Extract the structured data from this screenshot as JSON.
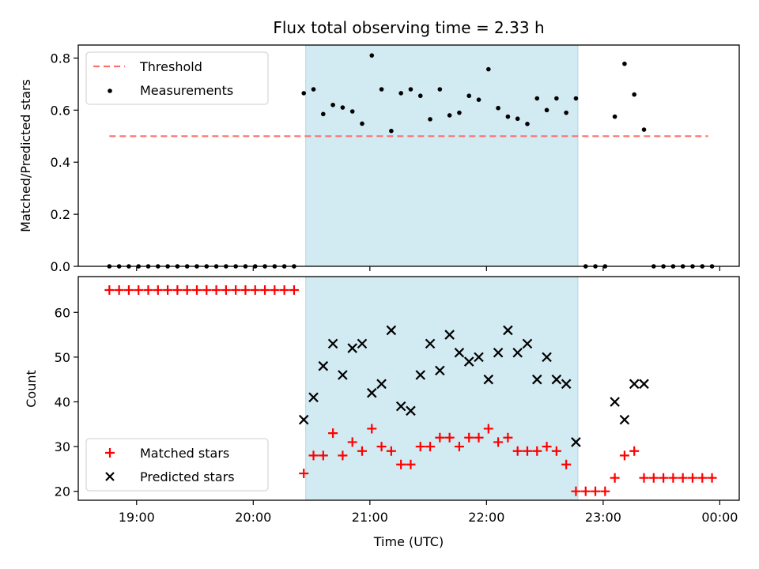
{
  "chart_data": [
    {
      "type": "scatter",
      "title": "Flux total observing time = 2.33 h",
      "ylabel": "Matched/Predicted stars",
      "ylim": [
        0,
        0.85
      ],
      "yticks": [
        "0.0",
        "0.2",
        "0.4",
        "0.6",
        "0.8"
      ],
      "x_time_range": [
        "18:30",
        "00:10"
      ],
      "highlight_span": {
        "start": "20:27",
        "end": "22:47",
        "color": "#add8e6"
      },
      "threshold": {
        "name": "Threshold",
        "value": 0.5,
        "x_start": "18:46",
        "x_end": "23:54",
        "color": "#ff7070"
      },
      "legend": [
        "Threshold",
        "Measurements"
      ],
      "legend_location": "upper left",
      "series": [
        {
          "name": "Measurements",
          "color": "#000000",
          "points": [
            [
              "18:46",
              0
            ],
            [
              "18:51",
              0
            ],
            [
              "18:56",
              0
            ],
            [
              "19:01",
              0
            ],
            [
              "19:06",
              0
            ],
            [
              "19:11",
              0
            ],
            [
              "19:16",
              0
            ],
            [
              "19:21",
              0
            ],
            [
              "19:26",
              0
            ],
            [
              "19:31",
              0
            ],
            [
              "19:36",
              0
            ],
            [
              "19:41",
              0
            ],
            [
              "19:46",
              0
            ],
            [
              "19:51",
              0
            ],
            [
              "19:56",
              0
            ],
            [
              "20:01",
              0
            ],
            [
              "20:06",
              0
            ],
            [
              "20:11",
              0
            ],
            [
              "20:16",
              0
            ],
            [
              "20:21",
              0
            ],
            [
              "20:26",
              0.665
            ],
            [
              "20:31",
              0.68
            ],
            [
              "20:36",
              0.585
            ],
            [
              "20:41",
              0.62
            ],
            [
              "20:46",
              0.61
            ],
            [
              "20:51",
              0.595
            ],
            [
              "20:56",
              0.548
            ],
            [
              "21:01",
              0.81
            ],
            [
              "21:06",
              0.68
            ],
            [
              "21:11",
              0.52
            ],
            [
              "21:16",
              0.665
            ],
            [
              "21:21",
              0.68
            ],
            [
              "21:26",
              0.655
            ],
            [
              "21:31",
              0.565
            ],
            [
              "21:36",
              0.68
            ],
            [
              "21:41",
              0.58
            ],
            [
              "21:46",
              0.59
            ],
            [
              "21:51",
              0.655
            ],
            [
              "21:56",
              0.64
            ],
            [
              "22:01",
              0.757
            ],
            [
              "22:06",
              0.608
            ],
            [
              "22:11",
              0.575
            ],
            [
              "22:16",
              0.567
            ],
            [
              "22:21",
              0.547
            ],
            [
              "22:26",
              0.645
            ],
            [
              "22:31",
              0.6
            ],
            [
              "22:36",
              0.645
            ],
            [
              "22:41",
              0.59
            ],
            [
              "22:46",
              0.645
            ],
            [
              "22:51",
              0
            ],
            [
              "22:56",
              0
            ],
            [
              "23:01",
              0
            ],
            [
              "23:06",
              0.575
            ],
            [
              "23:11",
              0.778
            ],
            [
              "23:16",
              0.66
            ],
            [
              "23:21",
              0.525
            ],
            [
              "23:26",
              0
            ],
            [
              "23:31",
              0
            ],
            [
              "23:36",
              0
            ],
            [
              "23:41",
              0
            ],
            [
              "23:46",
              0
            ],
            [
              "23:51",
              0
            ],
            [
              "23:56",
              0
            ]
          ]
        }
      ]
    },
    {
      "type": "scatter",
      "title": "",
      "xlabel": "Time (UTC)",
      "ylabel": "Count",
      "ylim": [
        18,
        68
      ],
      "yticks": [
        "20",
        "30",
        "40",
        "50",
        "60"
      ],
      "xticks": [
        "19:00",
        "20:00",
        "21:00",
        "22:00",
        "23:00",
        "00:00"
      ],
      "x_time_range": [
        "18:30",
        "00:10"
      ],
      "highlight_span": {
        "start": "20:27",
        "end": "22:47",
        "color": "#add8e6"
      },
      "legend": [
        "Matched stars",
        "Predicted stars"
      ],
      "legend_location": "lower left",
      "series": [
        {
          "name": "Matched stars",
          "marker": "plus",
          "color": "#ff0000",
          "points": [
            [
              "18:46",
              65
            ],
            [
              "18:51",
              65
            ],
            [
              "18:56",
              65
            ],
            [
              "19:01",
              65
            ],
            [
              "19:06",
              65
            ],
            [
              "19:11",
              65
            ],
            [
              "19:16",
              65
            ],
            [
              "19:21",
              65
            ],
            [
              "19:26",
              65
            ],
            [
              "19:31",
              65
            ],
            [
              "19:36",
              65
            ],
            [
              "19:41",
              65
            ],
            [
              "19:46",
              65
            ],
            [
              "19:51",
              65
            ],
            [
              "19:56",
              65
            ],
            [
              "20:01",
              65
            ],
            [
              "20:06",
              65
            ],
            [
              "20:11",
              65
            ],
            [
              "20:16",
              65
            ],
            [
              "20:21",
              65
            ],
            [
              "20:26",
              24
            ],
            [
              "20:31",
              28
            ],
            [
              "20:36",
              28
            ],
            [
              "20:41",
              33
            ],
            [
              "20:46",
              28
            ],
            [
              "20:51",
              31
            ],
            [
              "20:56",
              29
            ],
            [
              "21:01",
              34
            ],
            [
              "21:06",
              30
            ],
            [
              "21:11",
              29
            ],
            [
              "21:16",
              26
            ],
            [
              "21:21",
              26
            ],
            [
              "21:26",
              30
            ],
            [
              "21:31",
              30
            ],
            [
              "21:36",
              32
            ],
            [
              "21:41",
              32
            ],
            [
              "21:46",
              30
            ],
            [
              "21:51",
              32
            ],
            [
              "21:56",
              32
            ],
            [
              "22:01",
              34
            ],
            [
              "22:06",
              31
            ],
            [
              "22:11",
              32
            ],
            [
              "22:16",
              29
            ],
            [
              "22:21",
              29
            ],
            [
              "22:26",
              29
            ],
            [
              "22:31",
              30
            ],
            [
              "22:36",
              29
            ],
            [
              "22:41",
              26
            ],
            [
              "22:46",
              20
            ],
            [
              "22:51",
              20
            ],
            [
              "22:56",
              20
            ],
            [
              "23:01",
              20
            ],
            [
              "23:06",
              23
            ],
            [
              "23:11",
              28
            ],
            [
              "23:16",
              29
            ],
            [
              "23:21",
              23
            ],
            [
              "23:26",
              23
            ],
            [
              "23:31",
              23
            ],
            [
              "23:36",
              23
            ],
            [
              "23:41",
              23
            ],
            [
              "23:46",
              23
            ],
            [
              "23:51",
              23
            ],
            [
              "23:56",
              23
            ]
          ]
        },
        {
          "name": "Predicted stars",
          "marker": "x",
          "color": "#000000",
          "points": [
            [
              "20:26",
              36
            ],
            [
              "20:31",
              41
            ],
            [
              "20:36",
              48
            ],
            [
              "20:41",
              53
            ],
            [
              "20:46",
              46
            ],
            [
              "20:51",
              52
            ],
            [
              "20:56",
              53
            ],
            [
              "21:01",
              42
            ],
            [
              "21:06",
              44
            ],
            [
              "21:11",
              56
            ],
            [
              "21:16",
              39
            ],
            [
              "21:21",
              38
            ],
            [
              "21:26",
              46
            ],
            [
              "21:31",
              53
            ],
            [
              "21:36",
              47
            ],
            [
              "21:41",
              55
            ],
            [
              "21:46",
              51
            ],
            [
              "21:51",
              49
            ],
            [
              "21:56",
              50
            ],
            [
              "22:01",
              45
            ],
            [
              "22:06",
              51
            ],
            [
              "22:11",
              56
            ],
            [
              "22:16",
              51
            ],
            [
              "22:21",
              53
            ],
            [
              "22:26",
              45
            ],
            [
              "22:31",
              50
            ],
            [
              "22:36",
              45
            ],
            [
              "22:41",
              44
            ],
            [
              "22:46",
              31
            ],
            [
              "23:06",
              40
            ],
            [
              "23:11",
              36
            ],
            [
              "23:16",
              44
            ],
            [
              "23:21",
              44
            ]
          ]
        }
      ]
    }
  ]
}
